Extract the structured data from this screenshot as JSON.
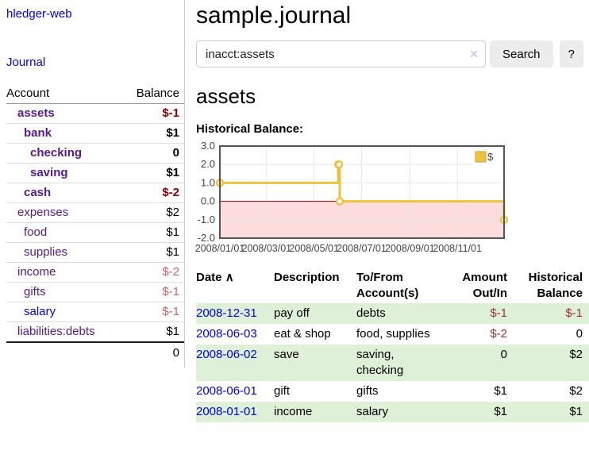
{
  "colors": {
    "purple_link": "#551a8b",
    "blue_link": "#0000ee",
    "neg_strong": "#8b0000",
    "neg_muted": "#c06666",
    "neg_table": "#993333",
    "row_green": "#dff0d8",
    "grid": "#e6e6e6",
    "chart_border": "#545454",
    "chart_yellow": "#edc240"
  },
  "sidebar": {
    "brand": "hledger-web",
    "nav": {
      "journal": "Journal"
    },
    "accounts_table": {
      "headers": {
        "account": "Account",
        "balance": "Balance"
      },
      "rows": [
        {
          "name": "assets",
          "balance": "$-1",
          "level": 1,
          "bold": true,
          "link": "purple"
        },
        {
          "name": "bank",
          "balance": "$1",
          "level": 2,
          "bold": true,
          "link": "purple"
        },
        {
          "name": "checking",
          "balance": "0",
          "level": 3,
          "bold": true,
          "link": "purple"
        },
        {
          "name": "saving",
          "balance": "$1",
          "level": 3,
          "bold": true,
          "link": "purple"
        },
        {
          "name": "cash",
          "balance": "$-2",
          "level": 2,
          "bold": true,
          "link": "purple"
        },
        {
          "name": "expenses",
          "balance": "$2",
          "level": 1,
          "bold": false,
          "link": "purple"
        },
        {
          "name": "food",
          "balance": "$1",
          "level": 2,
          "bold": false,
          "link": "purple"
        },
        {
          "name": "supplies",
          "balance": "$1",
          "level": 2,
          "bold": false,
          "link": "purple"
        },
        {
          "name": "income",
          "balance": "$-2",
          "level": 1,
          "bold": false,
          "link": "purple"
        },
        {
          "name": "gifts",
          "balance": "$-1",
          "level": 2,
          "bold": false,
          "link": "purple"
        },
        {
          "name": "salary",
          "balance": "$-1",
          "level": 2,
          "bold": false,
          "link": "blue"
        },
        {
          "name": "liabilities:debts",
          "balance": "$1",
          "level": 1,
          "bold": false,
          "link": "purple"
        }
      ],
      "total": "0"
    }
  },
  "main": {
    "title": "sample.journal",
    "search": {
      "value": "inacct:assets",
      "clear_icon": "✕",
      "search_button": "Search",
      "help_button": "?"
    },
    "account_heading": "assets",
    "chart_title": "Historical Balance:",
    "register": {
      "headers": [
        "Date",
        "Description",
        "To/From Account(s)",
        "Amount Out/In",
        "Historical Balance"
      ],
      "sort_icon": "∧",
      "rows": [
        {
          "date": "2008-12-31",
          "description": "pay off",
          "accounts": "debts",
          "amount": "$-1",
          "balance": "$-1"
        },
        {
          "date": "2008-06-03",
          "description": "eat & shop",
          "accounts": "food, supplies",
          "amount": "$-2",
          "balance": "0"
        },
        {
          "date": "2008-06-02",
          "description": "save",
          "accounts": "saving, checking",
          "amount": "0",
          "balance": "$2"
        },
        {
          "date": "2008-06-01",
          "description": "gift",
          "accounts": "gifts",
          "amount": "$1",
          "balance": "$2"
        },
        {
          "date": "2008-01-01",
          "description": "income",
          "accounts": "salary",
          "amount": "$1",
          "balance": "$1"
        }
      ]
    }
  },
  "chart_data": {
    "type": "line",
    "step": true,
    "title": "Historical Balance",
    "series": [
      {
        "name": "$",
        "color": "#edc240",
        "points": [
          [
            "2008-01-01",
            1
          ],
          [
            "2008-06-01",
            2
          ],
          [
            "2008-06-02",
            2
          ],
          [
            "2008-06-03",
            0
          ],
          [
            "2008-12-31",
            -1
          ]
        ]
      }
    ],
    "xrange": [
      "2008-01-01",
      "2008-12-31"
    ],
    "ylim": [
      -2,
      3
    ],
    "yticks": [
      3,
      2,
      1,
      0,
      -1,
      -2
    ],
    "xticks": [
      "2008/01/01",
      "2008/03/01",
      "2008/05/01",
      "2008/07/01",
      "2008/09/01",
      "2008/11/01"
    ],
    "grid": true,
    "legend": {
      "label": "$",
      "position": "top-right"
    },
    "negative_region_color": "#fcdcdc",
    "zero_line_color": "#8b0000"
  }
}
